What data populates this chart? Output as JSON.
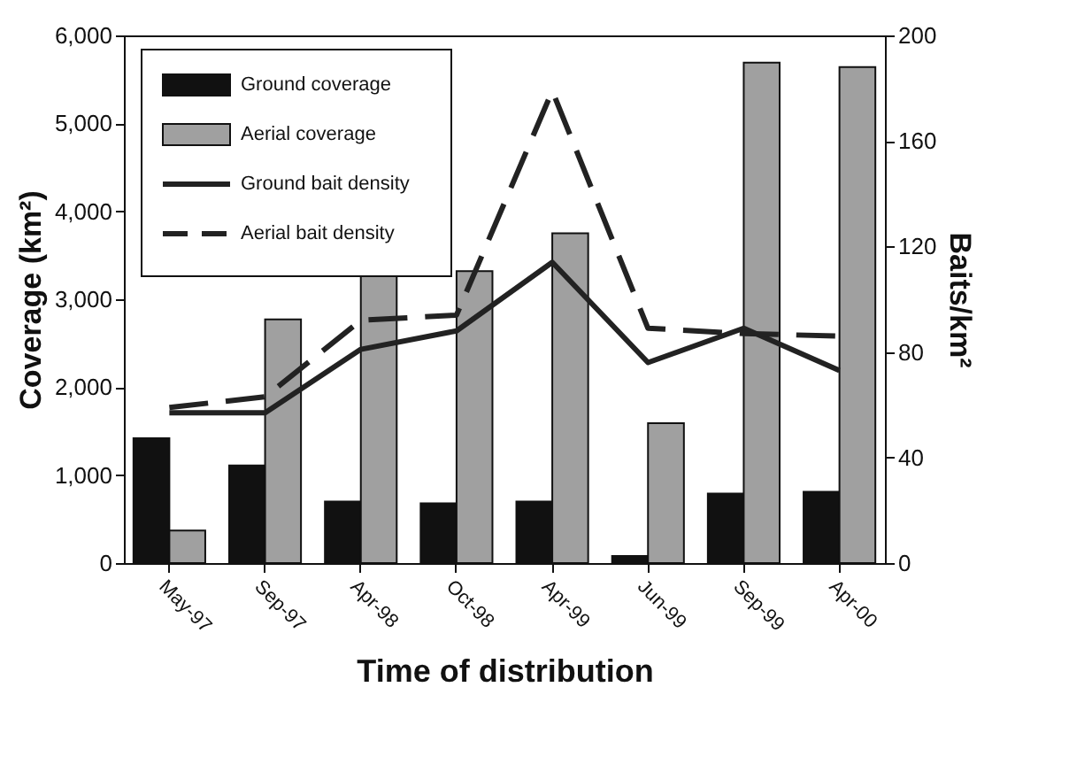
{
  "chart_data": {
    "type": "bar",
    "xlabel": "Time of distribution",
    "ylabel": "Coverage (km²)",
    "y2label": "Baits/km²",
    "categories": [
      "May-97",
      "Sep-97",
      "Apr-98",
      "Oct-98",
      "Apr-99",
      "Jun-99",
      "Sep-99",
      "Apr-00"
    ],
    "series": [
      {
        "name": "Ground coverage",
        "color": "#111111",
        "values": [
          1420,
          1110,
          700,
          680,
          700,
          80,
          790,
          810
        ]
      },
      {
        "name": "Aerial coverage",
        "color": "#a0a0a0",
        "values": [
          370,
          2770,
          3280,
          3320,
          3750,
          1590,
          5690,
          5640
        ]
      },
      {
        "name": "Ground bait density",
        "type": "line",
        "axis": "y2",
        "color": "#222222",
        "line_style": "solid",
        "values": [
          57,
          57,
          81,
          88,
          114,
          76,
          89,
          73
        ]
      },
      {
        "name": "Aerial bait density",
        "type": "line",
        "axis": "y2",
        "color": "#222222",
        "line_style": "dashed",
        "values": [
          59,
          63,
          92,
          94,
          179,
          89,
          87,
          86
        ]
      }
    ],
    "ylim": [
      0,
      6000
    ],
    "yticks": [
      0,
      {
        "value": 1000,
        "label": "1,000"
      },
      {
        "value": 2000,
        "label": "2,000"
      },
      {
        "value": 3000,
        "label": "3,000"
      },
      {
        "value": 4000,
        "label": "4,000"
      },
      {
        "value": 5000,
        "label": "5,000"
      },
      {
        "value": 6000,
        "label": "6,000"
      }
    ],
    "y2lim": [
      0,
      200
    ],
    "y2ticks": [
      0,
      40,
      80,
      120,
      160,
      200
    ],
    "grid": false,
    "legend": "top left",
    "marker": "none"
  }
}
